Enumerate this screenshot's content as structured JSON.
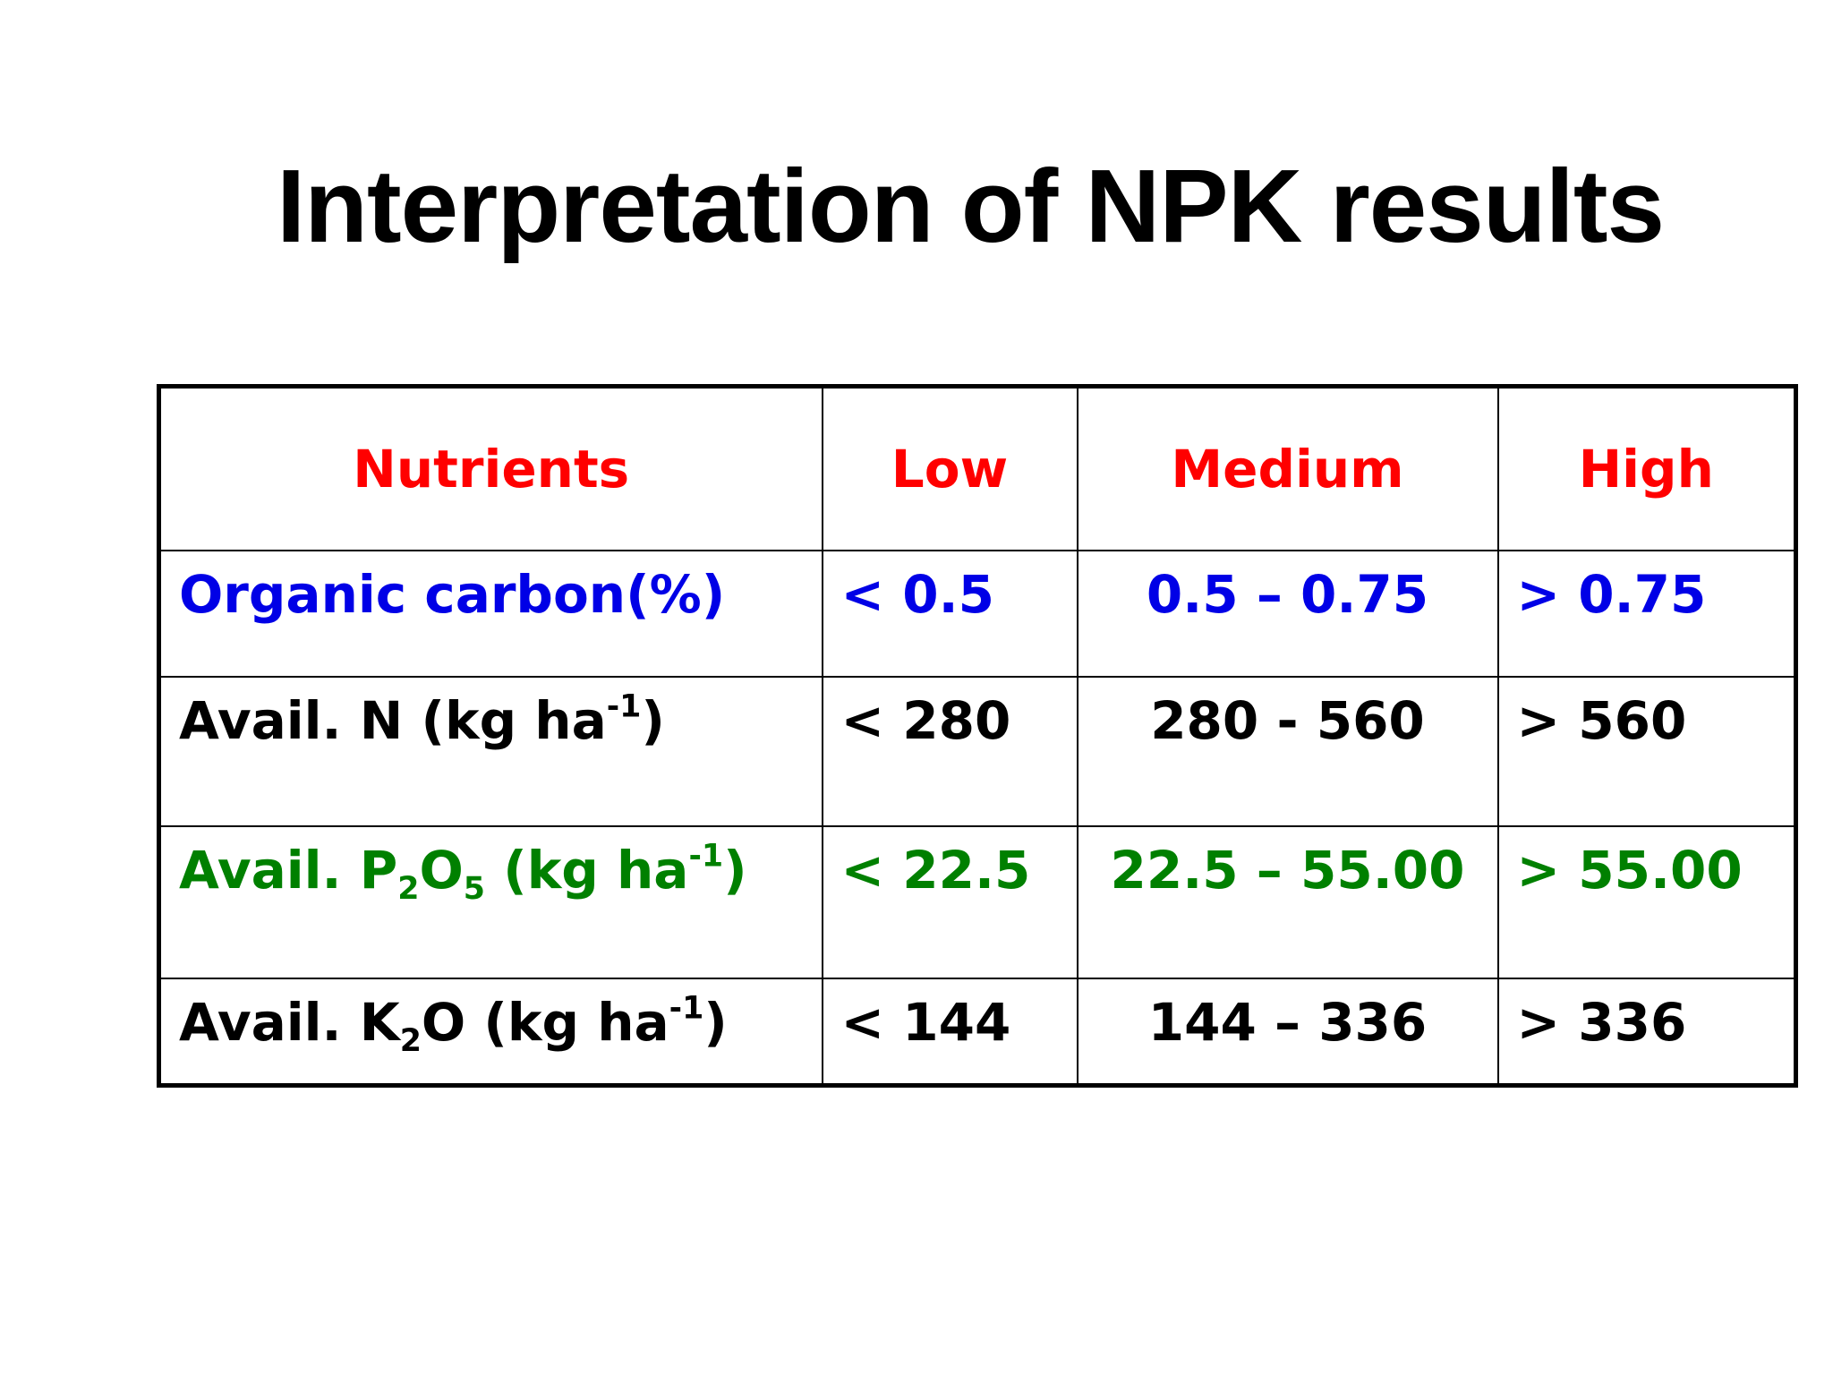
{
  "title": "Interpretation of NPK results",
  "colors": {
    "header": "#ff0000",
    "organic_carbon": "#0000e6",
    "nitrogen": "#000000",
    "phosphorus": "#008000",
    "potassium": "#000000"
  },
  "table": {
    "headers": {
      "nutrients": "Nutrients",
      "low": "Low",
      "medium": "Medium",
      "high": "High"
    },
    "rows": [
      {
        "nutrient": "Organic carbon(%)",
        "low": "< 0.5",
        "medium": "0.5 – 0.75",
        "high": "> 0.75"
      },
      {
        "nutrient_prefix": "Avail. N (kg ha",
        "nutrient_sup": "-1",
        "nutrient_suffix": ")",
        "low": "< 280",
        "medium": "280 - 560",
        "high": "> 560"
      },
      {
        "nutrient_prefix": "Avail. P",
        "nutrient_sub1": "2",
        "nutrient_mid": "O",
        "nutrient_sub2": "5",
        "nutrient_unit": " (kg ha",
        "nutrient_sup": "-1",
        "nutrient_suffix": ")",
        "low": "< 22.5",
        "medium": "22.5 – 55.00",
        "high": "> 55.00"
      },
      {
        "nutrient_prefix": "Avail. K",
        "nutrient_sub": "2",
        "nutrient_unit": "O (kg ha",
        "nutrient_sup": "-1",
        "nutrient_suffix": ")",
        "low": "< 144",
        "medium": "144 – 336",
        "high": "> 336"
      }
    ]
  }
}
